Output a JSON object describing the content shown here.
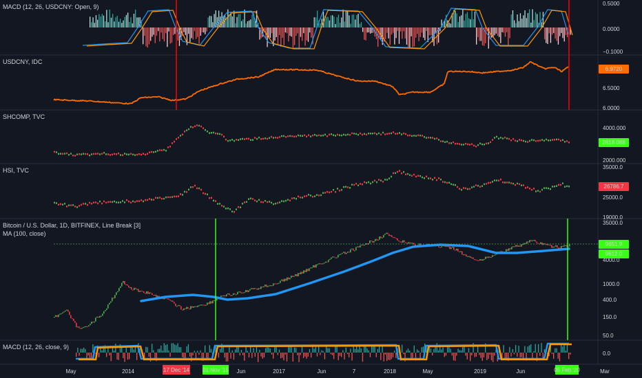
{
  "colors": {
    "background": "#131722",
    "divider": "#2a2e39",
    "bull": "#26a69a",
    "bear": "#ef5350",
    "green_candle": "#4caf50",
    "red_candle": "#f23645",
    "macd_line": "#2196f3",
    "signal_line": "#ff9800",
    "usdcny_line": "#ff6d00",
    "ma_line": "#2196f3",
    "red_marker": "#ff0000",
    "green_marker": "#39ff14",
    "text": "#d1d4dc"
  },
  "panes": [
    {
      "key": "macd_top",
      "title": "MACD (12, 26, USDCNY: Open, 9)",
      "ticks": [
        "0.5000",
        "0.0000",
        "−0.1000"
      ]
    },
    {
      "key": "usdcny",
      "title": "USDCNY, IDC",
      "ticks": [
        "6.5000",
        "6.0000"
      ]
    },
    {
      "key": "shcomp",
      "title": "SHCOMP, TVC",
      "ticks": [
        "4000.000",
        "2000.000"
      ]
    },
    {
      "key": "hsi",
      "title": "HSI, TVC",
      "ticks": [
        "35000.0",
        "25000.0",
        "19000.0"
      ]
    },
    {
      "key": "btc",
      "title": "Bitcoin / U.S. Dollar, 1D, BITFINEX, Line Break [3]",
      "subtitle": "MA (100, close)",
      "ticks": [
        "35000.0",
        "4000.0",
        "1000.0",
        "400.0",
        "150.0",
        "50.0"
      ]
    },
    {
      "key": "macd_bot",
      "title": "MACD (12, 26, close, 9)",
      "ticks": [
        "0.0"
      ]
    }
  ],
  "price_badges": {
    "usdcny": "6.9720",
    "shcomp": "2818.088",
    "hsi": "26786.7",
    "btc_price": "9651.9",
    "btc_ma": "9612.0"
  },
  "time_axis": {
    "labels": [
      "May",
      "2014",
      "Jun",
      "2017",
      "Jun",
      "7",
      "2018",
      "May",
      "2019",
      "Jun",
      "2020",
      "Mar"
    ],
    "marker_labels": [
      {
        "text": "17 Dec '14",
        "color": "#f23645"
      },
      {
        "text": "01 Nov '15",
        "color": "#39ff14"
      },
      {
        "text": "05 Feb '20",
        "color": "#39ff14"
      }
    ]
  },
  "chart_data": [
    {
      "type": "bar",
      "title": "MACD (12, 26, USDCNY: Open, 9)",
      "series_note": "histogram with MACD and signal lines",
      "ylim": [
        -0.1,
        0.5
      ]
    },
    {
      "type": "line",
      "title": "USDCNY, IDC",
      "ylim": [
        6.0,
        7.0
      ],
      "last": 6.972
    },
    {
      "type": "line",
      "title": "SHCOMP, TVC",
      "ylim": [
        2000,
        4000
      ],
      "last": 2818.088
    },
    {
      "type": "line",
      "title": "HSI, TVC",
      "ylim": [
        19000,
        35000
      ],
      "last": 26786.7
    },
    {
      "type": "line",
      "title": "Bitcoin / U.S. Dollar, 1D, BITFINEX, Line Break [3]",
      "ylim": [
        50,
        35000
      ],
      "log_scale": true,
      "series": [
        {
          "name": "MA (100, close)",
          "last": 9612.0
        }
      ],
      "last": 9651.9
    },
    {
      "type": "bar",
      "title": "MACD (12, 26, close, 9)",
      "ylim": [
        -1,
        1
      ]
    }
  ]
}
